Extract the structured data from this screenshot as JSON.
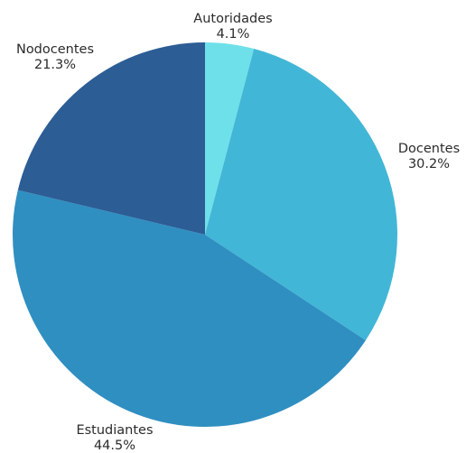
{
  "chart_data": {
    "type": "pie",
    "title": "",
    "start_angle_deg": 0,
    "direction": "clockwise",
    "slices": [
      {
        "label": "Autoridades",
        "pct_text": "4.1%",
        "value": 4.1,
        "color": "#6ee0ea"
      },
      {
        "label": "Docentes",
        "pct_text": "30.2%",
        "value": 30.2,
        "color": "#42b6d6"
      },
      {
        "label": "Estudiantes",
        "pct_text": "44.5%",
        "value": 44.5,
        "color": "#2f8fc1"
      },
      {
        "label": "Nodocentes",
        "pct_text": "21.3%",
        "value": 21.3,
        "color": "#2c5d95"
      }
    ]
  }
}
